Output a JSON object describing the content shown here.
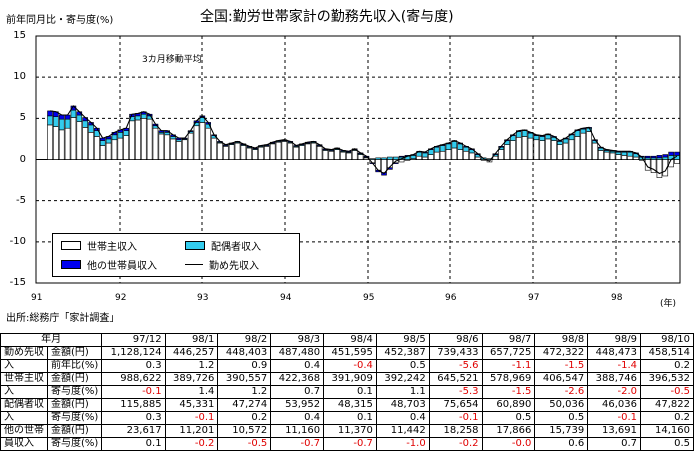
{
  "header": {
    "title": "全国:勤労世帯家計の勤務先収入(寄与度)",
    "y_unit": "前年同月比・寄与度(%)",
    "moving_avg_note": "3カ月移動平均",
    "year_unit": "(年)",
    "source": "出所:総務庁「家計調査」"
  },
  "legend": {
    "householder": "世帯主収入",
    "spouse": "配偶者収入",
    "other": "他の世帯員収入",
    "total": "勤め先収入"
  },
  "colors": {
    "householder": "#ffffff",
    "spouse": "#33ccee",
    "other": "#0000ee",
    "line": "#000000",
    "negative_text": "#e00000"
  },
  "chart_data": {
    "type": "bar",
    "stacked": true,
    "ylim": [
      -15,
      15
    ],
    "yticks": [
      "15",
      "10",
      "5",
      "0",
      "-5",
      "-10",
      "-15"
    ],
    "xticks": [
      "91",
      "92",
      "93",
      "94",
      "95",
      "96",
      "97",
      "98"
    ],
    "series": [
      {
        "name": "世帯主収入"
      },
      {
        "name": "配偶者収入"
      },
      {
        "name": "他の世帯員収入"
      },
      {
        "name": "勤め先収入"
      }
    ],
    "householder": [
      4.2,
      4.0,
      3.6,
      3.8,
      5.1,
      4.6,
      3.9,
      3.3,
      2.8,
      1.7,
      2.0,
      2.4,
      2.6,
      2.9,
      4.7,
      4.8,
      5.0,
      4.9,
      3.8,
      3.1,
      3.0,
      2.5,
      2.2,
      2.4,
      3.2,
      4.1,
      4.5,
      3.8,
      2.6,
      2.0,
      1.6,
      1.8,
      2.0,
      1.7,
      1.4,
      1.2,
      1.5,
      1.6,
      1.9,
      2.1,
      2.2,
      2.0,
      1.5,
      1.7,
      1.9,
      2.0,
      1.6,
      1.1,
      1.0,
      1.2,
      0.9,
      0.8,
      1.1,
      0.6,
      0.2,
      -0.4,
      -1.3,
      -1.6,
      -1.0,
      -0.4,
      -0.3,
      -0.1,
      0.1,
      0.4,
      0.3,
      0.6,
      0.9,
      1.0,
      1.2,
      1.4,
      1.2,
      1.0,
      0.8,
      0.3,
      -0.1,
      -0.3,
      0.4,
      1.2,
      1.8,
      2.3,
      2.7,
      2.8,
      2.6,
      2.4,
      2.3,
      2.5,
      2.3,
      1.8,
      2.0,
      2.4,
      2.8,
      3.2,
      3.4,
      2.0,
      1.1,
      0.9,
      0.8,
      0.6,
      0.5,
      0.4,
      0.3,
      -0.1,
      -1.3,
      -1.6,
      -2.2,
      -2.0,
      -0.9,
      -0.5
    ],
    "spouse": [
      1.1,
      1.2,
      1.3,
      1.1,
      0.9,
      0.8,
      0.8,
      0.9,
      0.7,
      0.6,
      0.5,
      0.6,
      0.7,
      0.6,
      0.5,
      0.5,
      0.5,
      0.4,
      0.3,
      0.2,
      0.3,
      0.3,
      0.2,
      0.1,
      0.2,
      0.4,
      0.6,
      0.5,
      0.3,
      0.1,
      0.1,
      0.1,
      0.1,
      0.1,
      0.1,
      0.1,
      0.1,
      0.1,
      0.1,
      0.1,
      0.1,
      0.1,
      0.1,
      0.1,
      0.1,
      0.1,
      0.1,
      0.1,
      0.1,
      0.1,
      0.1,
      0.1,
      0.1,
      0.1,
      0.1,
      0.1,
      0.2,
      0.2,
      0.3,
      0.3,
      0.3,
      0.4,
      0.4,
      0.5,
      0.5,
      0.6,
      0.6,
      0.7,
      0.7,
      0.8,
      0.7,
      0.5,
      0.4,
      0.3,
      0.2,
      0.1,
      0.2,
      0.3,
      0.5,
      0.6,
      0.7,
      0.7,
      0.6,
      0.5,
      0.5,
      0.5,
      0.4,
      0.4,
      0.5,
      0.6,
      0.7,
      0.5,
      0.4,
      0.3,
      0.3,
      0.2,
      0.2,
      0.3,
      0.4,
      0.5,
      0.4,
      0.3,
      0.2,
      0.2,
      0.2,
      0.3,
      0.5,
      0.5
    ],
    "other": [
      0.6,
      0.6,
      0.5,
      0.5,
      0.5,
      0.4,
      0.4,
      0.3,
      0.3,
      0.3,
      0.3,
      0.3,
      0.3,
      0.3,
      0.3,
      0.3,
      0.3,
      0.2,
      0.2,
      0.2,
      0.2,
      0.2,
      0.2,
      0.1,
      0.1,
      0.2,
      0.2,
      0.2,
      0.1,
      0.1,
      0.1,
      0.1,
      0.1,
      0.1,
      0.1,
      0.1,
      0.1,
      0.1,
      0.1,
      0.1,
      0.1,
      0.1,
      0.1,
      0.1,
      0.1,
      0.1,
      0.1,
      0.1,
      0.1,
      0.1,
      0.1,
      0.1,
      0.1,
      0.1,
      0.1,
      -0.1,
      -0.2,
      -0.3,
      -0.2,
      -0.1,
      0.1,
      0.1,
      0.1,
      0.1,
      0.1,
      0.1,
      0.1,
      0.1,
      0.1,
      0.1,
      0.1,
      0.1,
      0.1,
      0.1,
      0.0,
      0.0,
      0.1,
      0.1,
      0.1,
      0.1,
      0.1,
      0.1,
      0.1,
      0.1,
      0.1,
      0.1,
      0.1,
      0.1,
      0.1,
      0.1,
      0.1,
      0.1,
      0.1,
      0.1,
      0.1,
      0.1,
      0.1,
      0.1,
      0.1,
      0.1,
      0.1,
      0.1,
      0.2,
      0.2,
      0.3,
      0.3,
      0.4,
      0.4
    ]
  },
  "table": {
    "year_month_label": "年月",
    "columns": [
      "97/12",
      "98/1",
      "98/2",
      "98/3",
      "98/4",
      "98/5",
      "98/6",
      "98/7",
      "98/8",
      "98/9",
      "98/10"
    ],
    "groups": [
      {
        "label_top": "勤め先収",
        "label_bottom": "入",
        "rows": [
          {
            "label": "金額(円)",
            "values": [
              "1,128,124",
              "446,257",
              "448,403",
              "487,480",
              "451,595",
              "452,387",
              "739,433",
              "657,725",
              "472,322",
              "448,473",
              "458,514"
            ]
          },
          {
            "label": "前年比(%)",
            "values": [
              "0.3",
              "1.2",
              "0.9",
              "0.4",
              "-0.4",
              "0.5",
              "-5.6",
              "-1.1",
              "-1.5",
              "-1.4",
              "0.2"
            ]
          }
        ]
      },
      {
        "label_top": "世帯主収",
        "label_bottom": "入",
        "rows": [
          {
            "label": "金額(円)",
            "values": [
              "988,622",
              "389,726",
              "390,557",
              "422,368",
              "391,909",
              "392,242",
              "645,521",
              "578,969",
              "406,547",
              "388,746",
              "396,532"
            ]
          },
          {
            "label": "寄与度(%)",
            "values": [
              "-0.1",
              "1.4",
              "1.2",
              "0.7",
              "0.1",
              "1.1",
              "-5.3",
              "-1.5",
              "-2.6",
              "-2.0",
              "-0.5"
            ]
          }
        ]
      },
      {
        "label_top": "配偶者収",
        "label_bottom": "入",
        "rows": [
          {
            "label": "金額(円)",
            "values": [
              "115,885",
              "45,331",
              "47,274",
              "53,952",
              "48,315",
              "48,703",
              "75,654",
              "60,890",
              "50,036",
              "46,036",
              "47,822"
            ]
          },
          {
            "label": "寄与度(%)",
            "values": [
              "0.3",
              "-0.1",
              "0.2",
              "0.4",
              "0.1",
              "0.4",
              "-0.1",
              "0.5",
              "0.5",
              "-0.1",
              "0.2"
            ]
          }
        ]
      },
      {
        "label_top": "他の世帯",
        "label_bottom": "員収入",
        "rows": [
          {
            "label": "金額(円)",
            "values": [
              "23,617",
              "11,201",
              "10,572",
              "11,160",
              "11,370",
              "11,442",
              "18,258",
              "17,866",
              "15,739",
              "13,691",
              "14,160"
            ]
          },
          {
            "label": "寄与度(%)",
            "values": [
              "0.1",
              "-0.2",
              "-0.5",
              "-0.7",
              "-0.7",
              "-1.0",
              "-0.2",
              "-0.0",
              "0.6",
              "0.7",
              "0.5"
            ]
          }
        ]
      }
    ]
  }
}
